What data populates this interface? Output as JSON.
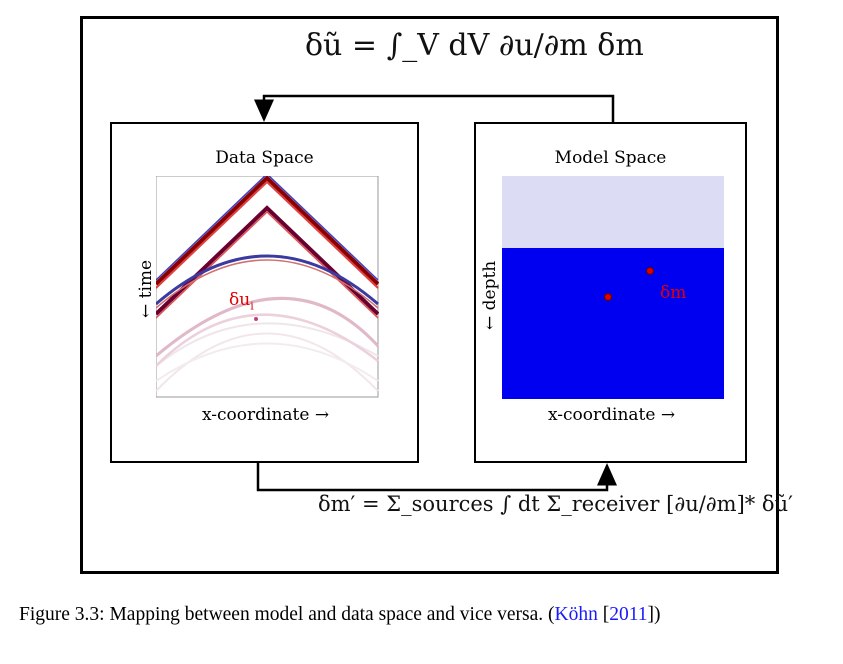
{
  "equations": {
    "top": "δũ = ∫_V dV ∂u/∂m δm",
    "bottom": "δm′ = Σ_sources ∫ dt Σ_receiver [∂u/∂m]* δũ′"
  },
  "data_space": {
    "title": "Data Space",
    "xlabel": "x-coordinate →",
    "ylabel": "← time",
    "annotation": "δu",
    "annotation_sub": "i"
  },
  "model_space": {
    "title": "Model Space",
    "xlabel": "x-coordinate →",
    "ylabel": "← depth",
    "annotation": "δm"
  },
  "caption": {
    "text": "Figure 3.3: Mapping between model and data space and vice versa. (",
    "cite_author": "Köhn",
    "cite_open": " [",
    "cite_year": "2011",
    "cite_close": "])"
  },
  "colors": {
    "model_layer_top": "#dcdcf4",
    "model_layer_bottom": "#0000f0",
    "annotation": "#e00000",
    "citation": "#1a1aff"
  }
}
